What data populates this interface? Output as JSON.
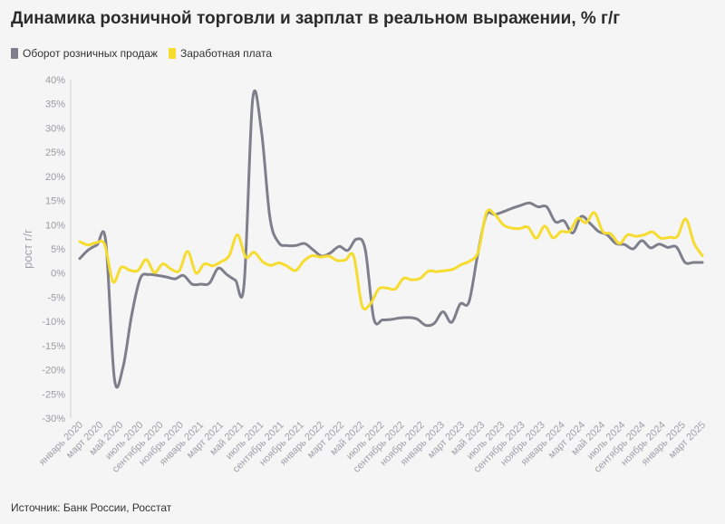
{
  "header": {
    "title": "Динамика розничной торговли и зарплат в реальном выражении, % г/г"
  },
  "footer": {
    "source": "Источник: Банк России, Росстат"
  },
  "chart_data": {
    "type": "line",
    "ylabel": "рост г/г",
    "ylim": [
      -30,
      40
    ],
    "yticks": [
      "40%",
      "35%",
      "30%",
      "25%",
      "20%",
      "15%",
      "10%",
      "5%",
      "0%",
      "-5%",
      "-10%",
      "-15%",
      "-20%",
      "-25%",
      "-30%"
    ],
    "xticks": [
      "январь 2020",
      "март 2020",
      "май 2020",
      "июль 2020",
      "сентябрь 2020",
      "ноябрь 2020",
      "январь 2021",
      "март 2021",
      "май 2021",
      "июль 2021",
      "сентябрь 2021",
      "ноябрь 2021",
      "январь 2022",
      "март 2022",
      "май 2022",
      "июль 2022",
      "сентябрь 2022",
      "ноябрь 2022",
      "январь 2023",
      "март 2023",
      "май 2023",
      "июль 2023",
      "сентябрь 2023",
      "ноябрь 2023",
      "январь 2024",
      "март 2024",
      "май 2024",
      "июль 2024",
      "сентябрь 2024",
      "ноябрь 2024",
      "январь 2025",
      "март 2025"
    ],
    "grid": false,
    "legend_position": "top-left",
    "series": [
      {
        "name": "Оборот розничных продаж",
        "color": "#7f7f8c",
        "values": [
          3.0,
          4.8,
          5.8,
          6.7,
          -21.8,
          -19.5,
          -8.7,
          -1.1,
          -0.3,
          -0.5,
          -0.8,
          -1.2,
          -0.5,
          -2.3,
          -2.3,
          -2.1,
          1.0,
          -0.3,
          -1.5,
          -2.4,
          35.9,
          29.5,
          11.4,
          6.3,
          5.7,
          5.7,
          6.1,
          4.8,
          3.5,
          4.2,
          5.5,
          4.7,
          7.0,
          5.0,
          -9.4,
          -9.7,
          -9.6,
          -9.3,
          -9.2,
          -9.5,
          -10.8,
          -10.4,
          -8.0,
          -10.2,
          -6.4,
          -6.0,
          3.6,
          11.9,
          12.1,
          12.7,
          13.4,
          14.0,
          14.5,
          13.7,
          13.7,
          10.6,
          10.8,
          8.3,
          11.7,
          10.3,
          8.6,
          7.9,
          6.1,
          5.9,
          5.0,
          6.7,
          5.2,
          6.0,
          5.3,
          5.4,
          2.2,
          2.2,
          2.2
        ]
      },
      {
        "name": "Заработная плата",
        "color": "#f6dc2f",
        "values": [
          6.5,
          5.8,
          6.3,
          5.9,
          -1.8,
          1.2,
          0.6,
          0.5,
          2.8,
          0.1,
          1.9,
          0.8,
          0.5,
          4.5,
          0.0,
          1.9,
          1.5,
          2.3,
          3.6,
          7.9,
          3.3,
          4.3,
          2.4,
          1.6,
          2.1,
          1.4,
          0.5,
          2.5,
          3.6,
          3.3,
          3.5,
          2.6,
          2.7,
          3.5,
          -6.7,
          -6.4,
          -3.3,
          -3.1,
          -3.3,
          -1.1,
          -1.4,
          -1.1,
          0.4,
          0.3,
          0.5,
          0.8,
          1.8,
          2.5,
          4.4,
          12.5,
          12.1,
          10.0,
          9.3,
          9.2,
          9.5,
          7.2,
          9.7,
          7.3,
          8.6,
          8.6,
          11.3,
          10.4,
          12.5,
          8.6,
          8.1,
          6.1,
          7.9,
          7.6,
          7.9,
          8.5,
          7.2,
          7.4,
          7.6,
          11.2,
          6.2,
          3.6
        ]
      }
    ]
  }
}
